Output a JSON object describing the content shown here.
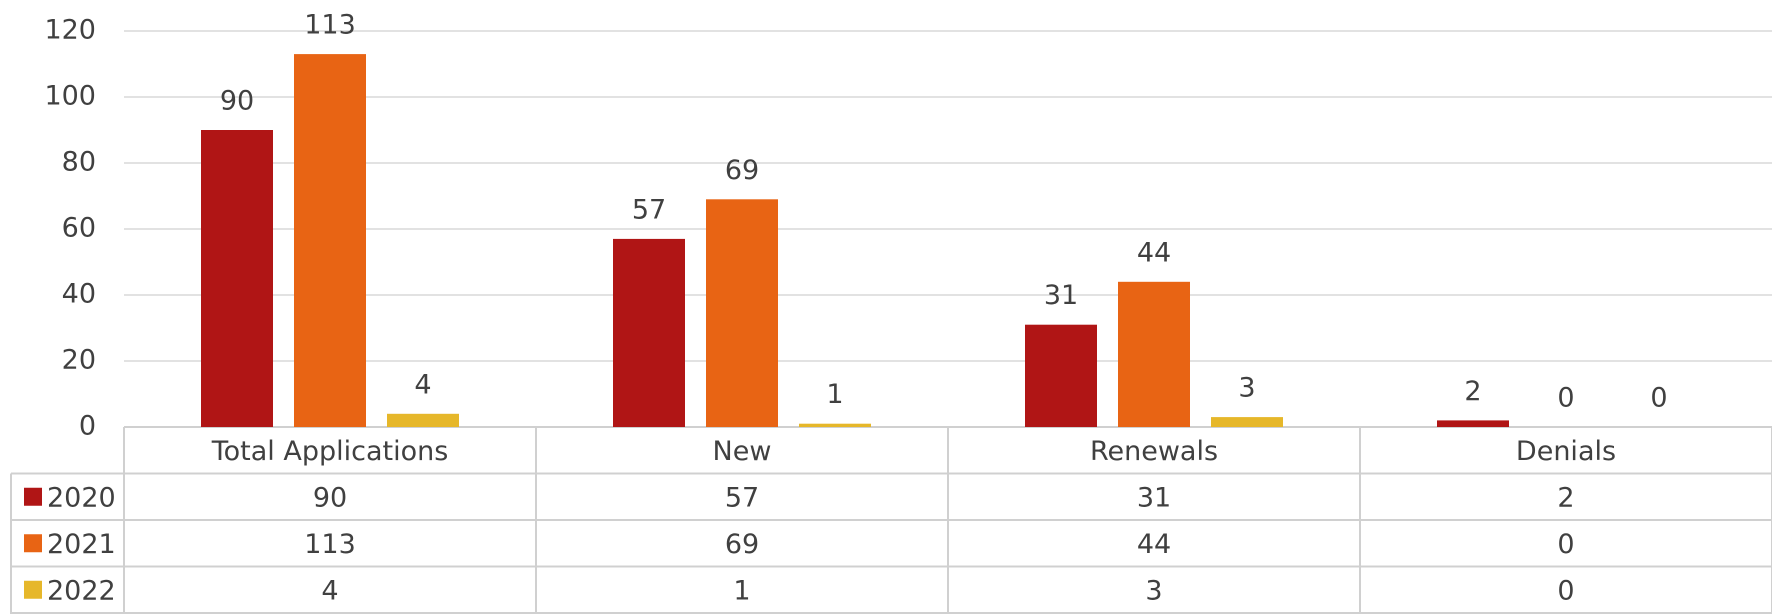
{
  "chart_data": {
    "type": "bar",
    "categories": [
      "Total Applications",
      "New",
      "Renewals",
      "Denials"
    ],
    "series": [
      {
        "name": "2020",
        "color": "#b01515",
        "values": [
          90,
          57,
          31,
          2
        ]
      },
      {
        "name": "2021",
        "color": "#e86414",
        "values": [
          113,
          69,
          44,
          0
        ]
      },
      {
        "name": "2022",
        "color": "#e6b72a",
        "values": [
          4,
          1,
          3,
          0
        ]
      }
    ],
    "ylim": [
      0,
      120
    ],
    "yticks": [
      0,
      20,
      40,
      60,
      80,
      100,
      120
    ],
    "grid": true
  }
}
